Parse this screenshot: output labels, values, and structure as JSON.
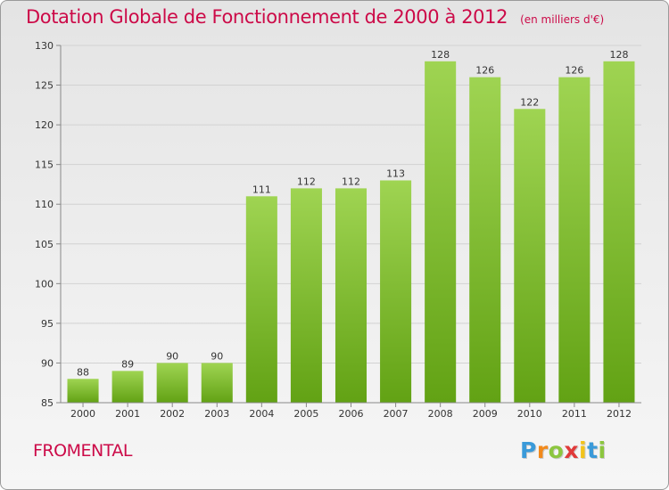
{
  "title": "Dotation Globale de Fonctionnement de 2000 à 2012",
  "unit_label": "(en milliers d'€)",
  "commune": "FROMENTAL",
  "logo": {
    "letters": [
      "P",
      "r",
      "o",
      "x",
      "i",
      "t",
      "i"
    ],
    "colors": [
      "#3a9ad9",
      "#f28a1c",
      "#8cc63f",
      "#e03a3a",
      "#f2c31c",
      "#3a9ad9",
      "#8cc63f"
    ]
  },
  "colors": {
    "accent": "#cc0a48",
    "bar_light": "#9fd452",
    "bar_dark": "#62a214",
    "grid": "#d2d2d2"
  },
  "chart_data": {
    "type": "bar",
    "title": "Dotation Globale de Fonctionnement de 2000 à 2012",
    "subtitle": "(en milliers d'€)",
    "categories": [
      "2000",
      "2001",
      "2002",
      "2003",
      "2004",
      "2005",
      "2006",
      "2007",
      "2008",
      "2009",
      "2010",
      "2011",
      "2012"
    ],
    "values": [
      88,
      89,
      90,
      90,
      111,
      112,
      112,
      113,
      128,
      126,
      122,
      126,
      128
    ],
    "ylim": [
      85,
      130
    ],
    "yticks": [
      85,
      90,
      95,
      100,
      105,
      110,
      115,
      120,
      125,
      130
    ],
    "grid": true,
    "legend": "none"
  }
}
